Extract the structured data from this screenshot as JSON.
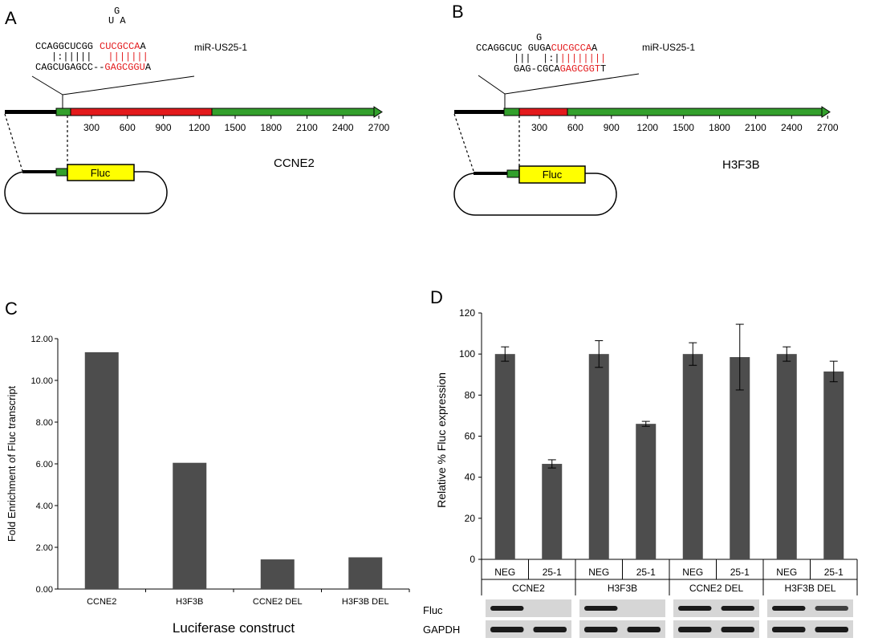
{
  "panels": {
    "A": {
      "letter": "A",
      "gene": "CCNE2",
      "fluc_label": "Fluc",
      "mirna_label": "miR-US25-1",
      "seq_bulge_top": "G",
      "seq_bulge_mid": "U A",
      "seq_top_black": "CCAGGCUCGG",
      "seq_top_red": "CUCGCCA",
      "seq_top_end": "A",
      "seq_pair_black": "|:|||||",
      "seq_pair_red": "|||||||",
      "seq_bottom_black": "CAGCUGAGCC--",
      "seq_bottom_red": "GAGCGGU",
      "seq_bottom_end": "A",
      "ticks": [
        "300",
        "600",
        "900",
        "1200",
        "1500",
        "1800",
        "2100",
        "2400",
        "2700"
      ]
    },
    "B": {
      "letter": "B",
      "gene": "H3F3B",
      "fluc_label": "Fluc",
      "mirna_label": "miR-US25-1",
      "seq_bulge_top": "G",
      "seq_top_black": "CCAGGCUC GUGA",
      "seq_top_red": "CUCGCCA",
      "seq_top_end": "A",
      "seq_pair_black": "|||  |:|",
      "seq_pair_red": "||||||||",
      "seq_bottom_black": "GAG-CGCA",
      "seq_bottom_red": "GAGCGGT",
      "seq_bottom_end": "T",
      "ticks": [
        "300",
        "600",
        "900",
        "1200",
        "1500",
        "1800",
        "2100",
        "2400",
        "2700"
      ]
    },
    "C": {
      "letter": "C"
    },
    "D": {
      "letter": "D"
    }
  },
  "chart_data": [
    {
      "type": "bar",
      "panel": "C",
      "categories": [
        "CCNE2",
        "H3F3B",
        "CCNE2 DEL",
        "H3F3B DEL"
      ],
      "values": [
        11.35,
        6.05,
        1.42,
        1.52
      ],
      "ylabel": "Fold Enrichment of Fluc transcript",
      "xlabel": "Luciferase construct",
      "ylim": [
        0,
        12
      ],
      "yticks": [
        "0.00",
        "2.00",
        "4.00",
        "6.00",
        "8.00",
        "10.00",
        "12.00"
      ],
      "color": "#4d4d4d"
    },
    {
      "type": "bar",
      "panel": "D",
      "groups": [
        "CCNE2",
        "H3F3B",
        "CCNE2 DEL",
        "H3F3B DEL"
      ],
      "subcategories": [
        "NEG",
        "25-1"
      ],
      "values": [
        100,
        46.5,
        100,
        66,
        100,
        98.5,
        100,
        91.5
      ],
      "errors": [
        3.5,
        2,
        6.5,
        1.2,
        5.5,
        16,
        3.5,
        5
      ],
      "ylabel": "Relative % Fluc expression",
      "ylim": [
        0,
        120
      ],
      "yticks": [
        "0",
        "20",
        "40",
        "60",
        "80",
        "100",
        "120"
      ],
      "blot_labels": [
        "Fluc",
        "GAPDH"
      ],
      "fluc_band_intensity": [
        1,
        0,
        1,
        0,
        1,
        1,
        1,
        0.8
      ],
      "color": "#4d4d4d"
    }
  ]
}
